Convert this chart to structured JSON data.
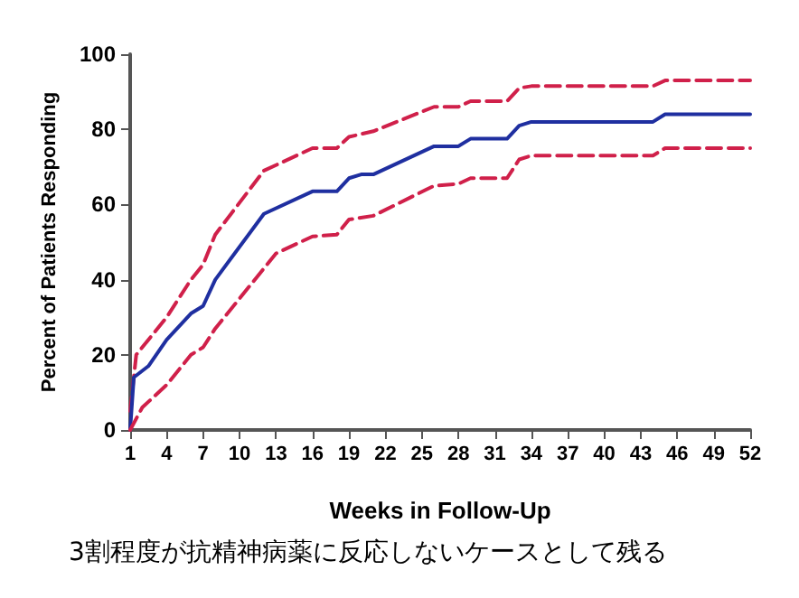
{
  "chart_data": {
    "type": "line",
    "xlabel": "Weeks in Follow-Up",
    "ylabel": "Percent of Patients Responding",
    "annotations": [
      "3割程度が抗精神病薬に反応しないケースとして残る"
    ],
    "xlim": [
      1,
      52
    ],
    "xticks": [
      1,
      4,
      7,
      10,
      13,
      16,
      19,
      22,
      25,
      28,
      31,
      34,
      37,
      40,
      43,
      46,
      49,
      52
    ],
    "ylim": [
      0,
      100
    ],
    "yticks": [
      0,
      20,
      40,
      60,
      80,
      100
    ],
    "grid": false,
    "marker": "none",
    "series": [
      {
        "color": "#d0204a",
        "line_style": "dashed",
        "x": [
          1,
          1.5,
          4,
          6,
          7,
          8,
          12,
          16,
          18,
          19,
          21,
          26,
          28,
          29,
          32,
          33,
          34,
          44,
          45,
          52
        ],
        "values": [
          5,
          20,
          30,
          40,
          44,
          52,
          69,
          75,
          75,
          78,
          79.5,
          86,
          86,
          87.5,
          87.5,
          91,
          91.5,
          91.5,
          93,
          93
        ]
      },
      {
        "color": "#1f2fa0",
        "line_style": "solid",
        "x": [
          1,
          1.3,
          2.5,
          4,
          6,
          7,
          8,
          12,
          16,
          18,
          19,
          20,
          21,
          26,
          28,
          29,
          32,
          33,
          34,
          44,
          45,
          52
        ],
        "values": [
          0,
          14,
          17,
          24,
          31,
          33,
          40,
          57.5,
          63.5,
          63.5,
          67,
          68,
          68,
          75.5,
          75.5,
          77.5,
          77.5,
          81,
          82,
          82,
          84,
          84
        ]
      },
      {
        "color": "#d0204a",
        "line_style": "dashed",
        "x": [
          1,
          2,
          4,
          6,
          7,
          8,
          13,
          16,
          18,
          19,
          21,
          26,
          28,
          29,
          32,
          33,
          34,
          44,
          45,
          52
        ],
        "values": [
          0,
          6,
          12,
          20,
          22,
          27,
          47,
          51.5,
          52,
          56,
          57,
          65,
          65.5,
          67,
          67,
          72,
          73,
          73,
          75,
          75
        ]
      }
    ]
  }
}
